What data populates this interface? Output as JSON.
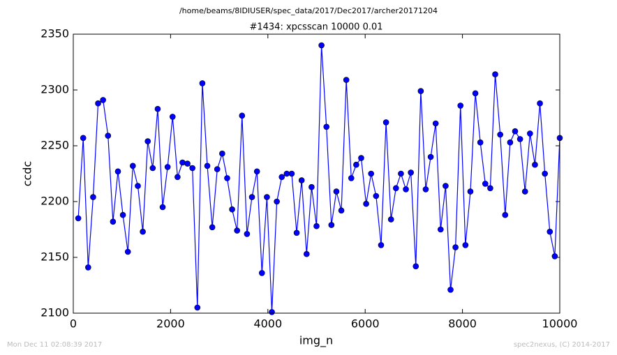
{
  "chart_data": {
    "type": "line",
    "suptitle": "/home/beams/8IDIUSER/spec_data/2017/Dec2017/archer20171204",
    "title": "#1434: xpcsscan 10000 0.01",
    "x_label": "img_n",
    "y_label": "ccdc",
    "footer_left": "Mon Dec 11 02:08:39 2017",
    "footer_right": "spec2nexus, (C) 2014-2017",
    "x": [
      102,
      204,
      306,
      408,
      510,
      612,
      714,
      816,
      918,
      1020,
      1122,
      1224,
      1327,
      1429,
      1531,
      1633,
      1735,
      1837,
      1939,
      2041,
      2143,
      2245,
      2347,
      2449,
      2551,
      2653,
      2755,
      2857,
      2959,
      3061,
      3163,
      3265,
      3367,
      3469,
      3571,
      3673,
      3776,
      3878,
      3980,
      4082,
      4184,
      4286,
      4388,
      4490,
      4592,
      4694,
      4796,
      4898,
      5000,
      5102,
      5204,
      5306,
      5408,
      5510,
      5612,
      5714,
      5816,
      5918,
      6020,
      6122,
      6224,
      6327,
      6429,
      6531,
      6633,
      6735,
      6837,
      6939,
      7041,
      7143,
      7245,
      7347,
      7449,
      7551,
      7653,
      7755,
      7857,
      7959,
      8061,
      8163,
      8265,
      8367,
      8469,
      8571,
      8673,
      8776,
      8878,
      8980,
      9082,
      9184,
      9286,
      9388,
      9490,
      9592,
      9694,
      9796,
      9898,
      10000
    ],
    "series": [
      {
        "name": "ccdc",
        "color": "#0000ff",
        "values": [
          2185,
          2257,
          2141,
          2204,
          2288,
          2291,
          2259,
          2182,
          2227,
          2188,
          2155,
          2232,
          2214,
          2173,
          2254,
          2230,
          2283,
          2195,
          2231,
          2276,
          2222,
          2235,
          2234,
          2230,
          2105,
          2306,
          2232,
          2177,
          2229,
          2243,
          2221,
          2193,
          2174,
          2277,
          2171,
          2204,
          2227,
          2136,
          2204,
          2101,
          2200,
          2222,
          2225,
          2225,
          2172,
          2219,
          2153,
          2213,
          2178,
          2340,
          2267,
          2179,
          2209,
          2192,
          2309,
          2221,
          2233,
          2239,
          2198,
          2225,
          2205,
          2161,
          2271,
          2184,
          2212,
          2225,
          2211,
          2226,
          2142,
          2299,
          2211,
          2240,
          2270,
          2175,
          2214,
          2121,
          2159,
          2286,
          2161,
          2209,
          2297,
          2253,
          2216,
          2212,
          2314,
          2260,
          2188,
          2253,
          2263,
          2256,
          2209,
          2261,
          2233,
          2288,
          2225,
          2173,
          2151,
          2257
        ]
      }
    ],
    "xlim": [
      0,
      10000
    ],
    "xticks": [
      0,
      2000,
      4000,
      6000,
      8000,
      10000
    ],
    "ylim": [
      2100,
      2350
    ],
    "yticks": [
      2100,
      2150,
      2200,
      2250,
      2300,
      2350
    ],
    "grid": false
  }
}
